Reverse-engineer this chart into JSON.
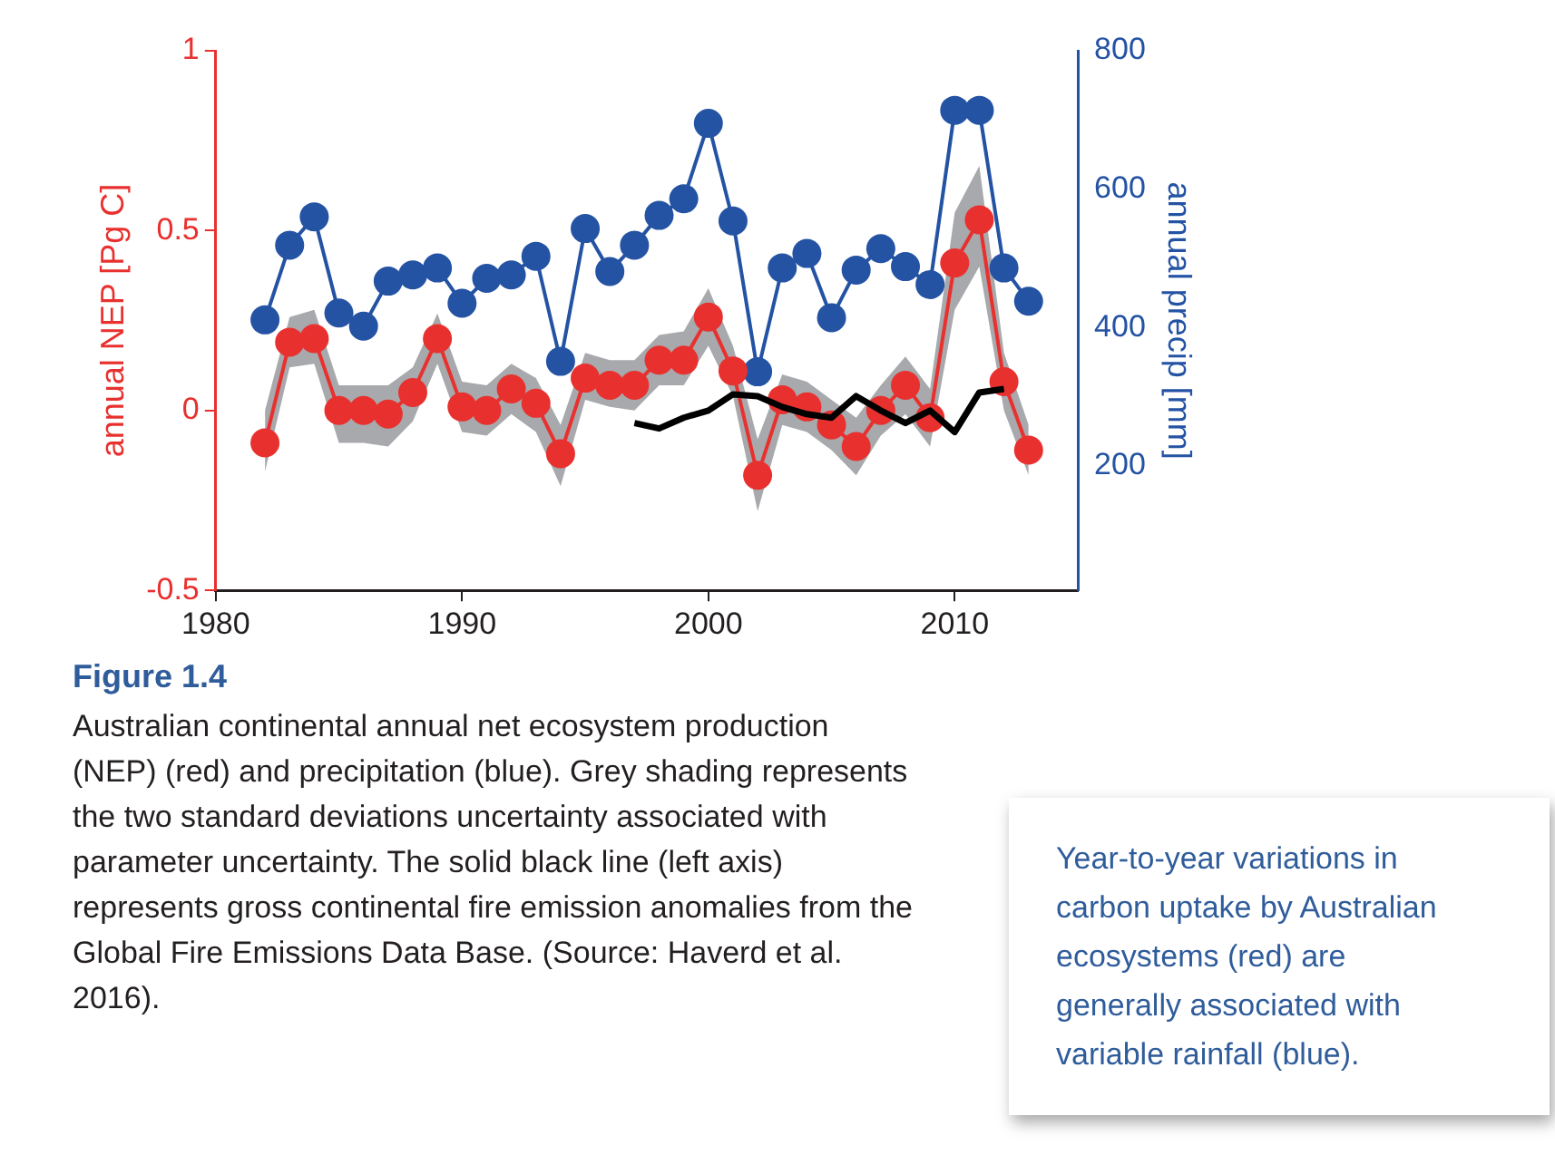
{
  "chart_data": {
    "type": "line",
    "ylabel": "annual NEP [Pg C]",
    "y2label": "annual precip [mm]",
    "x": [
      1982,
      1983,
      1984,
      1985,
      1986,
      1987,
      1988,
      1989,
      1990,
      1991,
      1992,
      1993,
      1994,
      1995,
      1996,
      1997,
      1998,
      1999,
      2000,
      2001,
      2002,
      2003,
      2004,
      2005,
      2006,
      2007,
      2008,
      2009,
      2010,
      2011,
      2012,
      2013
    ],
    "series": [
      {
        "color": "#2453a4",
        "axis": "y2",
        "values": [
          411,
          519,
          560,
          421,
          402,
          467,
          476,
          486,
          435,
          471,
          476,
          503,
          351,
          543,
          481,
          519,
          562,
          586,
          695,
          554,
          336,
          486,
          507,
          414,
          483,
          514,
          488,
          462,
          714,
          714,
          486,
          438
        ]
      },
      {
        "color": "#e8312f",
        "values": [
          -0.09,
          0.19,
          0.2,
          0.0,
          0.0,
          -0.01,
          0.05,
          0.2,
          0.01,
          0.0,
          0.06,
          0.02,
          -0.12,
          0.09,
          0.07,
          0.07,
          0.14,
          0.14,
          0.26,
          0.11,
          -0.18,
          0.03,
          0.01,
          -0.04,
          -0.1,
          0.0,
          0.07,
          -0.02,
          0.41,
          0.53,
          0.08,
          -0.11
        ],
        "lower": [
          -0.17,
          0.12,
          0.13,
          -0.09,
          -0.09,
          -0.1,
          -0.03,
          0.13,
          -0.06,
          -0.07,
          -0.01,
          -0.06,
          -0.21,
          0.03,
          0.01,
          0.0,
          0.07,
          0.07,
          0.18,
          0.04,
          -0.28,
          -0.04,
          -0.06,
          -0.11,
          -0.18,
          -0.07,
          -0.01,
          -0.1,
          0.28,
          0.4,
          0.0,
          -0.18
        ],
        "upper": [
          0.0,
          0.26,
          0.28,
          0.07,
          0.07,
          0.07,
          0.12,
          0.27,
          0.08,
          0.07,
          0.13,
          0.09,
          -0.04,
          0.16,
          0.14,
          0.14,
          0.21,
          0.22,
          0.34,
          0.18,
          -0.08,
          0.1,
          0.08,
          0.03,
          -0.02,
          0.07,
          0.15,
          0.06,
          0.55,
          0.68,
          0.16,
          -0.04
        ]
      },
      {
        "color": "#000000",
        "marker": "none",
        "x": [
          1997,
          1998,
          1999,
          2000,
          2001,
          2002,
          2003,
          2004,
          2005,
          2006,
          2007,
          2008,
          2009,
          2010,
          2011,
          2012
        ],
        "values": [
          -0.035,
          -0.05,
          -0.02,
          0.0,
          0.045,
          0.04,
          0.01,
          -0.01,
          -0.02,
          0.04,
          0.0,
          -0.035,
          0.0,
          -0.06,
          0.05,
          0.06
        ]
      }
    ],
    "xlim": [
      1980,
      2015
    ],
    "xticks": [
      1980,
      1990,
      2000,
      2010
    ],
    "ylim": [
      -0.5,
      1
    ],
    "yticks": [
      {
        "value": -0.5,
        "label": "-0.5"
      },
      0,
      0.5,
      1
    ],
    "y2lim": [
      20,
      800
    ],
    "y2ticks": [
      200,
      400,
      600,
      800
    ],
    "marker": "circle",
    "grid": false,
    "legend": false,
    "annotations": [
      "Figure 1.4",
      "Australian continental annual net ecosystem production (NEP) (red) and precipitation (blue). Grey shading represents the two standard deviations uncertainty associated with parameter uncertainty. The solid black line (left axis) represents gross continental fire emission anomalies from the Global Fire Emissions Data Base. (Source: Haverd et al. 2016).",
      "Year-to-year variations in carbon uptake by Australian ecosystems (red) are generally associated with variable rainfall (blue)."
    ]
  }
}
